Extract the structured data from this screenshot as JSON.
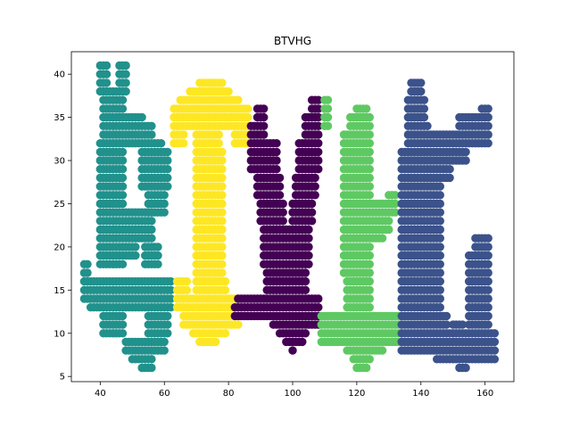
{
  "chart_data": {
    "type": "scatter",
    "title": "BTVHG",
    "xlabel": "",
    "ylabel": "",
    "xlim": [
      31,
      169
    ],
    "ylim": [
      4.4,
      42.6
    ],
    "xticks": [
      40,
      60,
      80,
      100,
      120,
      140,
      160
    ],
    "yticks": [
      5,
      10,
      15,
      20,
      25,
      30,
      35,
      40
    ],
    "grid": false,
    "series": [
      {
        "letter": "B",
        "color": "#21918c",
        "segments": [
          {
            "x0": 40,
            "x1": 42,
            "ys": [
              41,
              40,
              39
            ]
          },
          {
            "x0": 46,
            "x1": 48,
            "ys": [
              41,
              40,
              39
            ]
          },
          {
            "x0": 40,
            "x1": 48,
            "ys": [
              38
            ]
          },
          {
            "x0": 41,
            "x1": 47,
            "ys": [
              37,
              36
            ]
          },
          {
            "x0": 41,
            "x1": 53,
            "ys": [
              35
            ]
          },
          {
            "x0": 41,
            "x1": 56,
            "ys": [
              34,
              33
            ]
          },
          {
            "x0": 40,
            "x1": 59,
            "ys": [
              32
            ]
          },
          {
            "x0": 40,
            "x1": 47,
            "ys": [
              31,
              30,
              29,
              28,
              27,
              26,
              25
            ]
          },
          {
            "x0": 53,
            "x1": 61,
            "ys": [
              31,
              30,
              29,
              28,
              27
            ]
          },
          {
            "x0": 55,
            "x1": 60,
            "ys": [
              26,
              25,
              24
            ]
          },
          {
            "x0": 40,
            "x1": 56,
            "ys": [
              24,
              23,
              22,
              21
            ]
          },
          {
            "x0": 40,
            "x1": 51,
            "ys": [
              20,
              19
            ]
          },
          {
            "x0": 40,
            "x1": 47,
            "ys": [
              18
            ]
          },
          {
            "x0": 54,
            "x1": 58,
            "ys": [
              20,
              19,
              18
            ]
          },
          {
            "x0": 35,
            "x1": 36,
            "ys": [
              18,
              17
            ]
          },
          {
            "x0": 35,
            "x1": 62,
            "ys": [
              16,
              15,
              14
            ]
          },
          {
            "x0": 37,
            "x1": 62,
            "ys": [
              13
            ]
          },
          {
            "x0": 41,
            "x1": 47,
            "ys": [
              12,
              11,
              10
            ]
          },
          {
            "x0": 55,
            "x1": 61,
            "ys": [
              12,
              11,
              10
            ]
          },
          {
            "x0": 48,
            "x1": 60,
            "ys": [
              9,
              8
            ]
          },
          {
            "x0": 50,
            "x1": 56,
            "ys": [
              7
            ]
          },
          {
            "x0": 53,
            "x1": 56,
            "ys": [
              6
            ]
          }
        ]
      },
      {
        "letter": "T",
        "color": "#fde725",
        "segments": [
          {
            "x0": 71,
            "x1": 78,
            "ys": [
              39
            ]
          },
          {
            "x0": 68,
            "x1": 80,
            "ys": [
              38
            ]
          },
          {
            "x0": 65,
            "x1": 83,
            "ys": [
              37
            ]
          },
          {
            "x0": 63,
            "x1": 86,
            "ys": [
              36,
              35,
              34
            ]
          },
          {
            "x0": 63,
            "x1": 66,
            "ys": [
              33,
              32
            ]
          },
          {
            "x0": 70,
            "x1": 77,
            "ys": [
              33,
              32
            ]
          },
          {
            "x0": 82,
            "x1": 86,
            "ys": [
              33,
              32
            ]
          },
          {
            "x0": 70,
            "x1": 78,
            "ys": [
              31,
              30,
              29,
              28,
              27,
              26,
              25,
              24,
              23,
              22,
              21,
              20,
              19,
              18,
              17
            ]
          },
          {
            "x0": 64,
            "x1": 67,
            "ys": [
              16,
              15
            ]
          },
          {
            "x0": 70,
            "x1": 79,
            "ys": [
              16,
              15
            ]
          },
          {
            "x0": 64,
            "x1": 83,
            "ys": [
              14,
              13
            ]
          },
          {
            "x0": 66,
            "x1": 83,
            "ys": [
              12,
              11
            ]
          },
          {
            "x0": 69,
            "x1": 79,
            "ys": [
              10
            ]
          },
          {
            "x0": 71,
            "x1": 76,
            "ys": [
              9
            ]
          }
        ]
      },
      {
        "letter": "V",
        "color": "#440154",
        "segments": [
          {
            "x0": 89,
            "x1": 91,
            "ys": [
              36,
              35
            ]
          },
          {
            "x0": 106,
            "x1": 108,
            "ys": [
              37,
              36
            ]
          },
          {
            "x0": 87,
            "x1": 91,
            "ys": [
              34,
              33
            ]
          },
          {
            "x0": 104,
            "x1": 108,
            "ys": [
              35,
              34,
              33
            ]
          },
          {
            "x0": 87,
            "x1": 95,
            "ys": [
              32,
              31,
              30,
              29
            ]
          },
          {
            "x0": 102,
            "x1": 108,
            "ys": [
              32,
              31,
              30,
              29
            ]
          },
          {
            "x0": 89,
            "x1": 96,
            "ys": [
              28,
              27,
              26
            ]
          },
          {
            "x0": 101,
            "x1": 107,
            "ys": [
              28,
              27,
              26
            ]
          },
          {
            "x0": 90,
            "x1": 97,
            "ys": [
              25,
              24,
              23
            ]
          },
          {
            "x0": 100,
            "x1": 106,
            "ys": [
              25,
              24,
              23
            ]
          },
          {
            "x0": 91,
            "x1": 105,
            "ys": [
              22,
              21,
              20,
              19,
              18
            ]
          },
          {
            "x0": 92,
            "x1": 104,
            "ys": [
              17,
              16,
              15
            ]
          },
          {
            "x0": 83,
            "x1": 108,
            "ys": [
              14
            ]
          },
          {
            "x0": 82,
            "x1": 108,
            "ys": [
              13,
              12
            ]
          },
          {
            "x0": 94,
            "x1": 108,
            "ys": [
              11
            ]
          },
          {
            "x0": 96,
            "x1": 104,
            "ys": [
              10
            ]
          },
          {
            "x0": 98,
            "x1": 103,
            "ys": [
              9
            ]
          },
          {
            "x0": 100,
            "x1": 100,
            "ys": [
              8
            ]
          }
        ]
      },
      {
        "letter": "H",
        "color": "#5ec962",
        "segments": [
          {
            "x0": 110,
            "x1": 111,
            "ys": [
              37,
              36,
              35,
              34
            ]
          },
          {
            "x0": 120,
            "x1": 123,
            "ys": [
              36
            ]
          },
          {
            "x0": 118,
            "x1": 124,
            "ys": [
              35,
              34
            ]
          },
          {
            "x0": 116,
            "x1": 124,
            "ys": [
              33,
              32,
              31,
              30,
              29,
              28,
              27,
              26
            ]
          },
          {
            "x0": 130,
            "x1": 132,
            "ys": [
              26
            ]
          },
          {
            "x0": 116,
            "x1": 132,
            "ys": [
              25,
              24
            ]
          },
          {
            "x0": 116,
            "x1": 130,
            "ys": [
              23,
              22
            ]
          },
          {
            "x0": 116,
            "x1": 128,
            "ys": [
              21
            ]
          },
          {
            "x0": 116,
            "x1": 124,
            "ys": [
              20,
              19,
              18,
              17
            ]
          },
          {
            "x0": 117,
            "x1": 124,
            "ys": [
              16,
              15,
              14,
              13
            ]
          },
          {
            "x0": 109,
            "x1": 134,
            "ys": [
              12,
              11,
              10,
              9
            ]
          },
          {
            "x0": 117,
            "x1": 128,
            "ys": [
              8
            ]
          },
          {
            "x0": 119,
            "x1": 124,
            "ys": [
              7
            ]
          },
          {
            "x0": 120,
            "x1": 123,
            "ys": [
              6
            ]
          }
        ]
      },
      {
        "letter": "G",
        "color": "#3b528b",
        "segments": [
          {
            "x0": 137,
            "x1": 140,
            "ys": [
              39,
              38
            ]
          },
          {
            "x0": 136,
            "x1": 141,
            "ys": [
              37,
              36
            ]
          },
          {
            "x0": 159,
            "x1": 161,
            "ys": [
              36
            ]
          },
          {
            "x0": 136,
            "x1": 141,
            "ys": [
              35
            ]
          },
          {
            "x0": 152,
            "x1": 161,
            "ys": [
              35,
              34
            ]
          },
          {
            "x0": 136,
            "x1": 142,
            "ys": [
              34
            ]
          },
          {
            "x0": 136,
            "x1": 161,
            "ys": [
              33,
              32
            ]
          },
          {
            "x0": 134,
            "x1": 154,
            "ys": [
              31,
              30
            ]
          },
          {
            "x0": 134,
            "x1": 149,
            "ys": [
              29,
              28
            ]
          },
          {
            "x0": 134,
            "x1": 146,
            "ys": [
              27,
              26,
              25,
              24,
              23,
              22,
              21,
              20,
              19,
              18,
              17,
              16,
              15,
              14,
              13
            ]
          },
          {
            "x0": 157,
            "x1": 161,
            "ys": [
              21,
              20
            ]
          },
          {
            "x0": 155,
            "x1": 161,
            "ys": [
              19,
              18,
              17,
              16,
              15,
              14,
              13,
              12,
              11
            ]
          },
          {
            "x0": 134,
            "x1": 148,
            "ys": [
              12,
              11
            ]
          },
          {
            "x0": 150,
            "x1": 153,
            "ys": [
              11
            ]
          },
          {
            "x0": 134,
            "x1": 163,
            "ys": [
              10,
              9,
              8
            ]
          },
          {
            "x0": 145,
            "x1": 163,
            "ys": [
              7
            ]
          },
          {
            "x0": 152,
            "x1": 154,
            "ys": [
              6
            ]
          }
        ]
      }
    ]
  }
}
